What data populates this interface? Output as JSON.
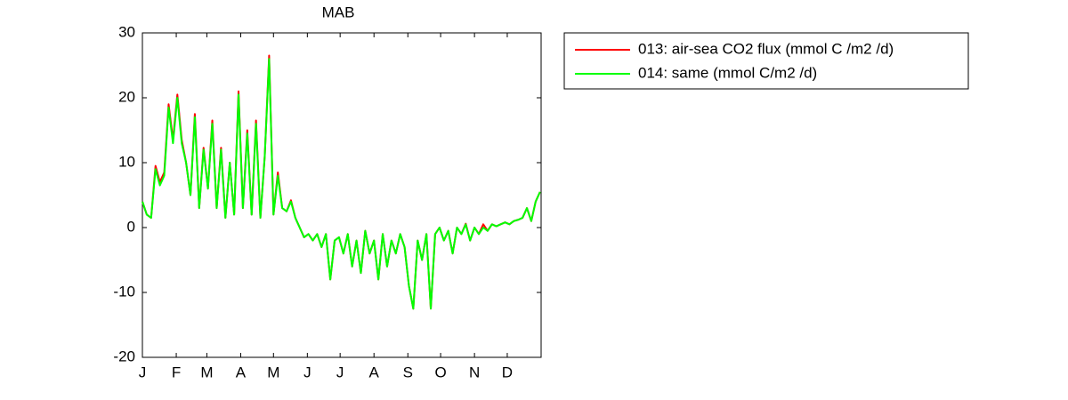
{
  "chart_data": {
    "type": "line",
    "title": "MAB",
    "x": [
      1,
      5,
      9,
      13,
      17,
      21,
      25,
      29,
      33,
      37,
      41,
      45,
      49,
      53,
      57,
      61,
      65,
      69,
      73,
      77,
      81,
      85,
      89,
      93,
      97,
      101,
      105,
      109,
      113,
      117,
      121,
      125,
      129,
      133,
      137,
      141,
      145,
      149,
      153,
      157,
      161,
      165,
      169,
      173,
      177,
      181,
      185,
      189,
      193,
      197,
      201,
      205,
      209,
      213,
      217,
      221,
      225,
      229,
      233,
      237,
      241,
      245,
      249,
      253,
      257,
      261,
      265,
      269,
      273,
      277,
      281,
      285,
      289,
      293,
      297,
      301,
      305,
      309,
      313,
      317,
      321,
      325,
      329,
      333,
      337,
      341,
      345,
      349,
      353,
      357,
      361,
      365
    ],
    "series": [
      {
        "name": "013: air-sea CO2 flux (mmol C /m2 /d)",
        "color": "#ff0000",
        "values": [
          4,
          2,
          1.5,
          9.5,
          7,
          8.5,
          19,
          13.5,
          20.5,
          13.5,
          10,
          5,
          17.5,
          3,
          12.3,
          6,
          16.5,
          3,
          12.3,
          1.5,
          10,
          2,
          21,
          3,
          15,
          2,
          16.5,
          1.5,
          11,
          26.5,
          2,
          8.5,
          3,
          2.5,
          4.2,
          1.5,
          0,
          -1.5,
          -1,
          -2,
          -1,
          -3,
          -1,
          -8,
          -2,
          -1.5,
          -4,
          -1,
          -6,
          -2,
          -7,
          -0.5,
          -4,
          -2,
          -8,
          -1,
          -6,
          -2,
          -4,
          -1,
          -3,
          -9,
          -12.5,
          -2,
          -5,
          -1,
          -12.5,
          -1,
          0,
          -2,
          -0.5,
          -4,
          0,
          -1,
          0.6,
          -2,
          0,
          -1,
          0.5,
          -0.5,
          0.5,
          0.2,
          0.5,
          0.8,
          0.5,
          1,
          1.2,
          1.5,
          3,
          1,
          4,
          5.5
        ]
      },
      {
        "name": "014: same (mmol C/m2 /d)",
        "color": "#00ff00",
        "values": [
          4,
          2,
          1.5,
          9,
          6.5,
          8,
          18.5,
          13,
          20,
          13,
          10,
          5,
          17,
          3,
          12,
          6,
          16,
          3,
          12,
          1.5,
          10,
          2,
          20.5,
          3,
          14.5,
          2,
          16,
          1.5,
          11,
          26,
          2,
          8,
          3,
          2.5,
          4,
          1.5,
          0,
          -1.5,
          -1,
          -2,
          -1,
          -3,
          -1,
          -8,
          -2,
          -1.5,
          -4,
          -1,
          -6,
          -2,
          -7,
          -0.5,
          -4,
          -2,
          -8,
          -1,
          -6,
          -2,
          -4,
          -1,
          -3,
          -9,
          -12.5,
          -2,
          -5,
          -1,
          -12.5,
          -1,
          0,
          -2,
          -0.5,
          -4,
          0,
          -1,
          0.5,
          -2,
          0,
          -1,
          0,
          -0.5,
          0.5,
          0.2,
          0.5,
          0.8,
          0.5,
          1,
          1.2,
          1.5,
          3,
          1,
          4,
          5.5
        ]
      }
    ],
    "xlim": [
      1,
      366
    ],
    "xticks": [
      {
        "value": 1,
        "label": "J"
      },
      {
        "value": 32,
        "label": "F"
      },
      {
        "value": 60,
        "label": "M"
      },
      {
        "value": 91,
        "label": "A"
      },
      {
        "value": 121,
        "label": "M"
      },
      {
        "value": 152,
        "label": "J"
      },
      {
        "value": 182,
        "label": "J"
      },
      {
        "value": 213,
        "label": "A"
      },
      {
        "value": 244,
        "label": "S"
      },
      {
        "value": 274,
        "label": "O"
      },
      {
        "value": 305,
        "label": "N"
      },
      {
        "value": 335,
        "label": "D"
      }
    ],
    "ylim": [
      -20,
      30
    ],
    "yticks": [
      -20,
      -10,
      0,
      10,
      20,
      30
    ],
    "grid": false,
    "legend": "outside-right"
  }
}
